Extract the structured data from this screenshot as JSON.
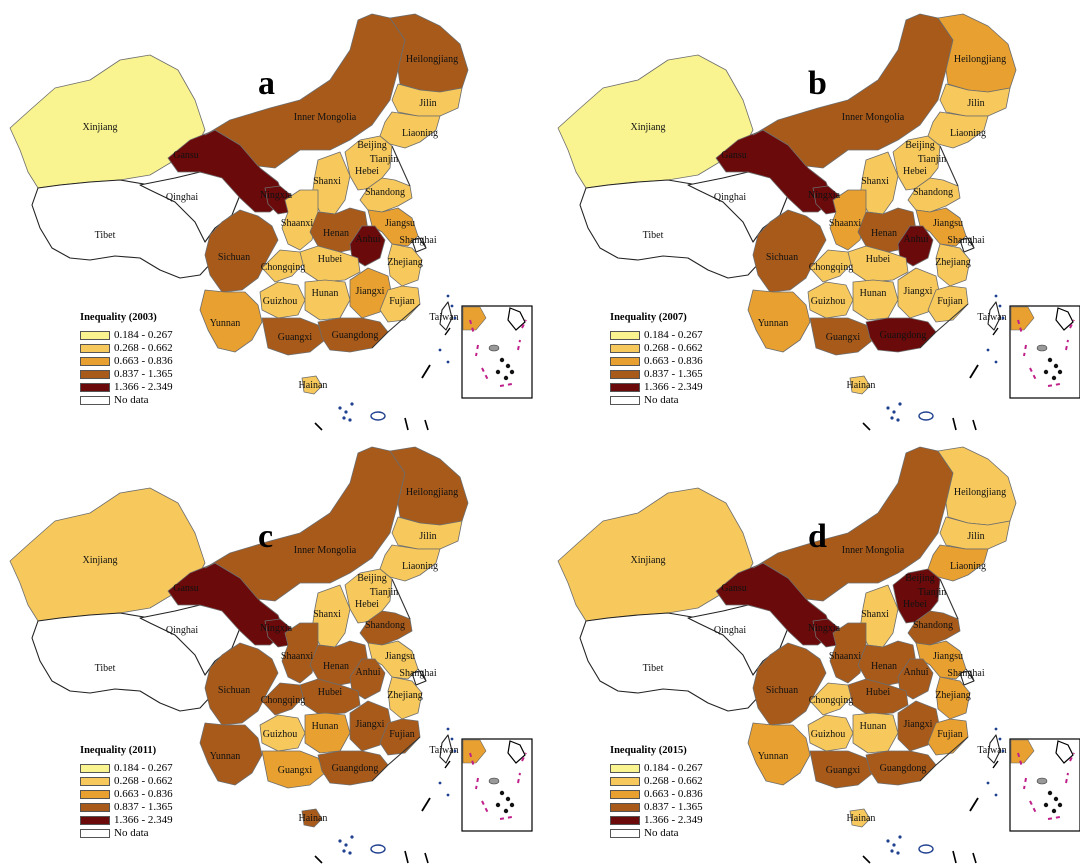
{
  "legend": {
    "title_prefix": "Inequality",
    "classes": [
      {
        "label": "0.184 - 0.267",
        "color": "#f9f48f"
      },
      {
        "label": "0.268 - 0.662",
        "color": "#f7c95c"
      },
      {
        "label": "0.663 - 0.836",
        "color": "#e8a030"
      },
      {
        "label": "0.837 - 1.365",
        "color": "#a85a1a"
      },
      {
        "label": "1.366 - 2.349",
        "color": "#6b0a0a"
      },
      {
        "label": "No data",
        "color": "#ffffff"
      }
    ]
  },
  "province_names": {
    "xinjiang": "Xinjiang",
    "tibet": "Tibet",
    "qinghai": "Qinghai",
    "gansu": "Gansu",
    "inner_mongolia": "Inner Mongolia",
    "heilongjiang": "Heilongjiang",
    "jilin": "Jilin",
    "liaoning": "Liaoning",
    "beijing": "Beijing",
    "tianjin": "Tianjin",
    "hebei": "Hebei",
    "shanxi": "Shanxi",
    "shandong": "Shandong",
    "ningxia": "Ningxia",
    "shaanxi": "Shaanxi",
    "henan": "Henan",
    "jiangsu": "Jiangsu",
    "anhui": "Anhui",
    "shanghai": "Shanghai",
    "sichuan": "Sichuan",
    "chongqing": "Chongqing",
    "hubei": "Hubei",
    "zhejiang": "Zhejiang",
    "hunan": "Hunan",
    "jiangxi": "Jiangxi",
    "fujian": "Fujian",
    "guizhou": "Guizhou",
    "yunnan": "Yunnan",
    "guangxi": "Guangxi",
    "guangdong": "Guangdong",
    "hainan": "Hainan",
    "taiwan": "Taiwan"
  },
  "panels": [
    {
      "letter": "a",
      "year": "2003",
      "classes": {
        "xinjiang": 0,
        "tibet": 5,
        "qinghai": 5,
        "gansu": 4,
        "inner_mongolia": 3,
        "heilongjiang": 3,
        "jilin": 1,
        "liaoning": 1,
        "beijing": 5,
        "tianjin": 5,
        "hebei": 1,
        "shanxi": 1,
        "shandong": 1,
        "ningxia": 4,
        "shaanxi": 1,
        "henan": 3,
        "jiangsu": 2,
        "anhui": 4,
        "shanghai": 5,
        "sichuan": 3,
        "chongqing": 1,
        "hubei": 1,
        "zhejiang": 1,
        "hunan": 1,
        "jiangxi": 2,
        "fujian": 1,
        "guizhou": 1,
        "yunnan": 2,
        "guangxi": 3,
        "guangdong": 3,
        "hainan": 1,
        "taiwan": 5
      }
    },
    {
      "letter": "b",
      "year": "2007",
      "classes": {
        "xinjiang": 0,
        "tibet": 5,
        "qinghai": 5,
        "gansu": 4,
        "inner_mongolia": 3,
        "heilongjiang": 2,
        "jilin": 1,
        "liaoning": 1,
        "beijing": 5,
        "tianjin": 5,
        "hebei": 1,
        "shanxi": 1,
        "shandong": 1,
        "ningxia": 4,
        "shaanxi": 2,
        "henan": 3,
        "jiangsu": 2,
        "anhui": 4,
        "shanghai": 5,
        "sichuan": 3,
        "chongqing": 1,
        "hubei": 1,
        "zhejiang": 1,
        "hunan": 1,
        "jiangxi": 1,
        "fujian": 1,
        "guizhou": 1,
        "yunnan": 2,
        "guangxi": 3,
        "guangdong": 4,
        "hainan": 1,
        "taiwan": 5
      }
    },
    {
      "letter": "c",
      "year": "2011",
      "classes": {
        "xinjiang": 1,
        "tibet": 5,
        "qinghai": 5,
        "gansu": 4,
        "inner_mongolia": 3,
        "heilongjiang": 3,
        "jilin": 1,
        "liaoning": 1,
        "beijing": 5,
        "tianjin": 5,
        "hebei": 1,
        "shanxi": 1,
        "shandong": 3,
        "ningxia": 4,
        "shaanxi": 3,
        "henan": 3,
        "jiangsu": 1,
        "anhui": 3,
        "shanghai": 5,
        "sichuan": 3,
        "chongqing": 3,
        "hubei": 3,
        "zhejiang": 1,
        "hunan": 2,
        "jiangxi": 3,
        "fujian": 3,
        "guizhou": 1,
        "yunnan": 3,
        "guangxi": 2,
        "guangdong": 3,
        "hainan": 3,
        "taiwan": 5
      }
    },
    {
      "letter": "d",
      "year": "2015",
      "classes": {
        "xinjiang": 1,
        "tibet": 5,
        "qinghai": 5,
        "gansu": 4,
        "inner_mongolia": 3,
        "heilongjiang": 1,
        "jilin": 1,
        "liaoning": 2,
        "beijing": 5,
        "tianjin": 5,
        "hebei": 4,
        "shanxi": 1,
        "shandong": 3,
        "ningxia": 4,
        "shaanxi": 3,
        "henan": 3,
        "jiangsu": 2,
        "anhui": 3,
        "shanghai": 5,
        "sichuan": 3,
        "chongqing": 1,
        "hubei": 3,
        "zhejiang": 2,
        "hunan": 1,
        "jiangxi": 3,
        "fujian": 2,
        "guizhou": 1,
        "yunnan": 2,
        "guangxi": 3,
        "guangdong": 3,
        "hainan": 1,
        "taiwan": 5
      }
    }
  ]
}
